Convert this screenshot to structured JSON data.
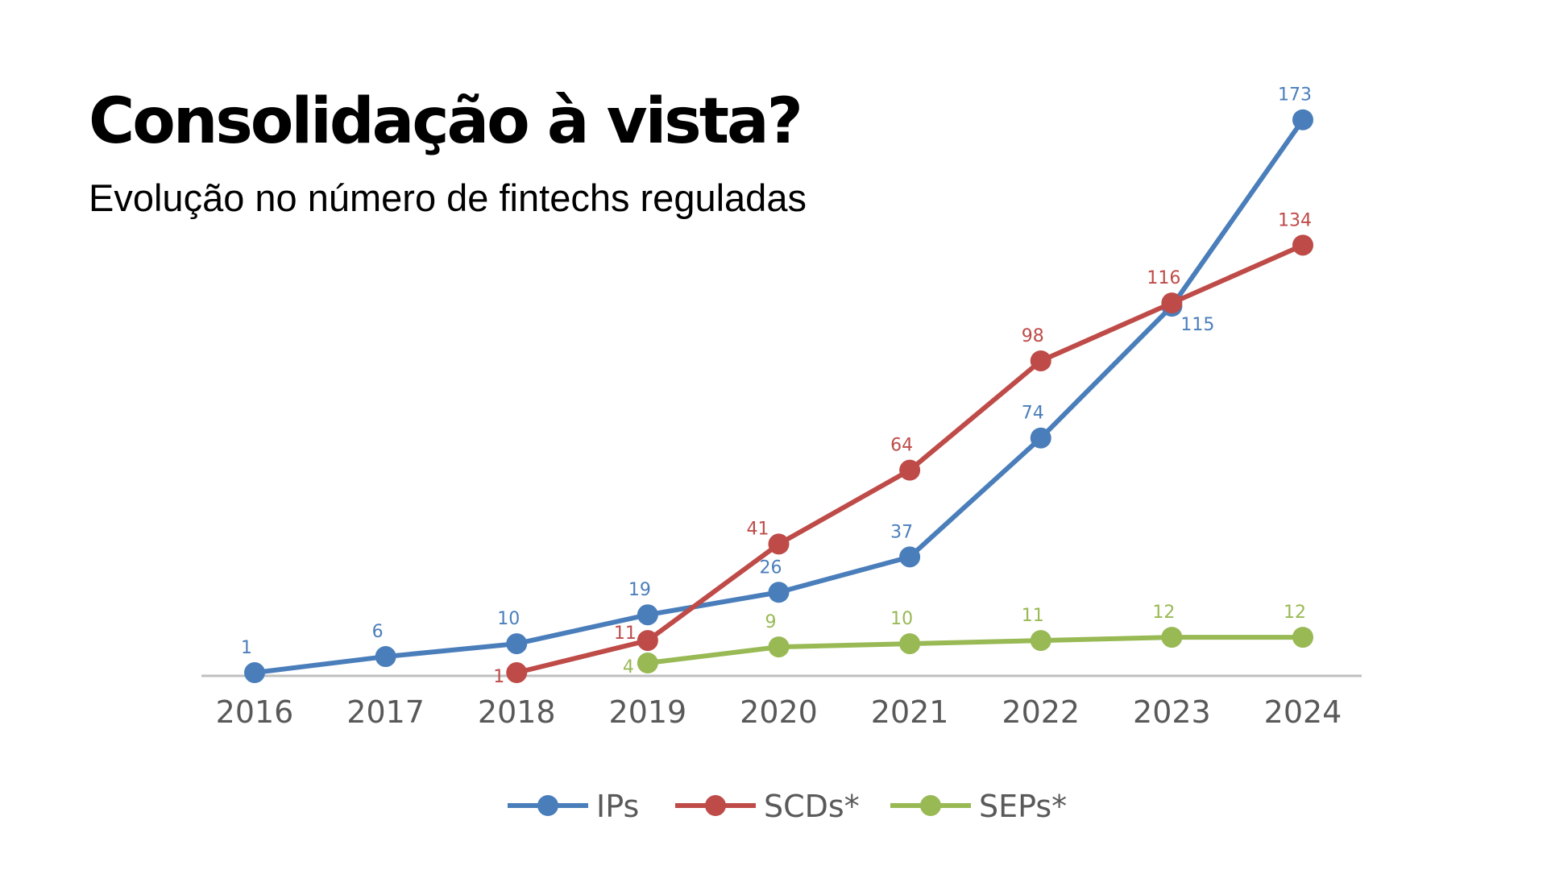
{
  "title": "Consolidação à vista?",
  "subtitle": "Evolução no número de fintechs reguladas",
  "chart_data": {
    "type": "line",
    "x": [
      "2016",
      "2017",
      "2018",
      "2019",
      "2020",
      "2021",
      "2022",
      "2023",
      "2024"
    ],
    "series": [
      {
        "name": "IPs",
        "color": "#4a7ebb",
        "values": [
          1,
          6,
          10,
          19,
          26,
          37,
          74,
          115,
          173
        ]
      },
      {
        "name": "SCDs*",
        "color": "#be4b48",
        "values": [
          null,
          null,
          1,
          11,
          41,
          64,
          98,
          116,
          134
        ]
      },
      {
        "name": "SEPs*",
        "color": "#98b954",
        "values": [
          null,
          null,
          null,
          4,
          9,
          10,
          11,
          12,
          12
        ]
      }
    ],
    "ylim": [
      0,
      180
    ],
    "grid": false,
    "legend": "bottom",
    "data_labels": true
  }
}
